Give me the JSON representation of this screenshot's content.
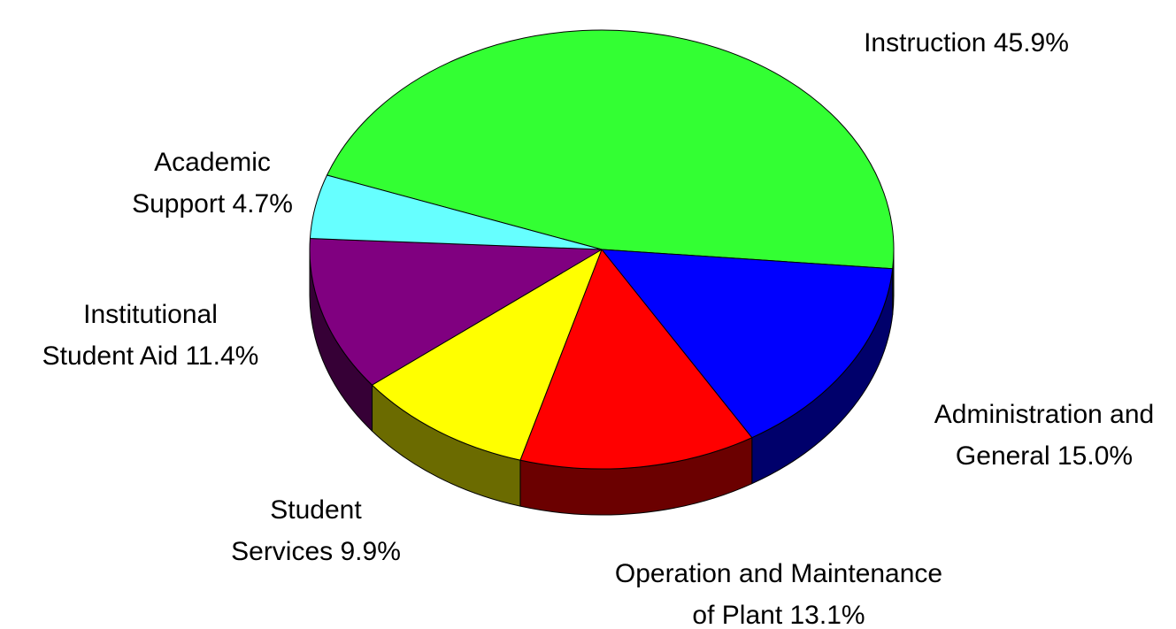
{
  "chart_data": {
    "type": "pie",
    "values": [
      45.9,
      15.0,
      13.1,
      9.9,
      11.4,
      4.7
    ],
    "value_labels": [
      [
        "Instruction 45.9%"
      ],
      [
        "Administration and",
        "General 15.0%"
      ],
      [
        "Operation and Maintenance",
        "of Plant 13.1%"
      ],
      [
        "Student",
        "Services 9.9%"
      ],
      [
        "Institutional",
        "Student Aid 11.4%"
      ],
      [
        "Academic",
        "Support 4.7%"
      ]
    ],
    "colors": [
      "#33ff33",
      "#0000ff",
      "#ff0000",
      "#ffff00",
      "#800080",
      "#66ffff"
    ]
  }
}
